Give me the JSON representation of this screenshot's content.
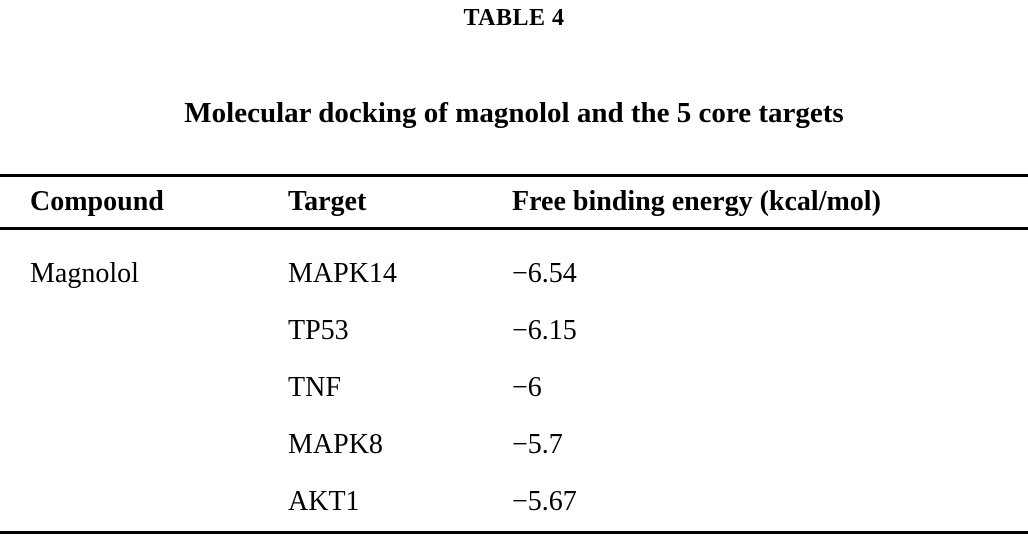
{
  "table": {
    "label": "TABLE 4",
    "caption": "Molecular docking of magnolol and the 5 core targets",
    "columns": [
      "Compound",
      "Target",
      "Free binding energy (kcal/mol)"
    ],
    "rows": [
      {
        "compound": "Magnolol",
        "target": "MAPK14",
        "energy": "−6.54"
      },
      {
        "compound": "",
        "target": "TP53",
        "energy": "−6.15"
      },
      {
        "compound": "",
        "target": "TNF",
        "energy": "−6"
      },
      {
        "compound": "",
        "target": "MAPK8",
        "energy": "−5.7"
      },
      {
        "compound": "",
        "target": "AKT1",
        "energy": "−5.67"
      }
    ]
  },
  "chart_data": {
    "type": "table",
    "title": "Molecular docking of magnolol and the 5 core targets",
    "columns": [
      "Compound",
      "Target",
      "Free binding energy (kcal/mol)"
    ],
    "compound": "Magnolol",
    "targets": [
      "MAPK14",
      "TP53",
      "TNF",
      "MAPK8",
      "AKT1"
    ],
    "free_binding_energy_kcal_mol": [
      -6.54,
      -6.15,
      -6,
      -5.7,
      -5.67
    ]
  },
  "colors": {
    "text": "#000000",
    "background": "#ffffff",
    "rule": "#000000"
  }
}
